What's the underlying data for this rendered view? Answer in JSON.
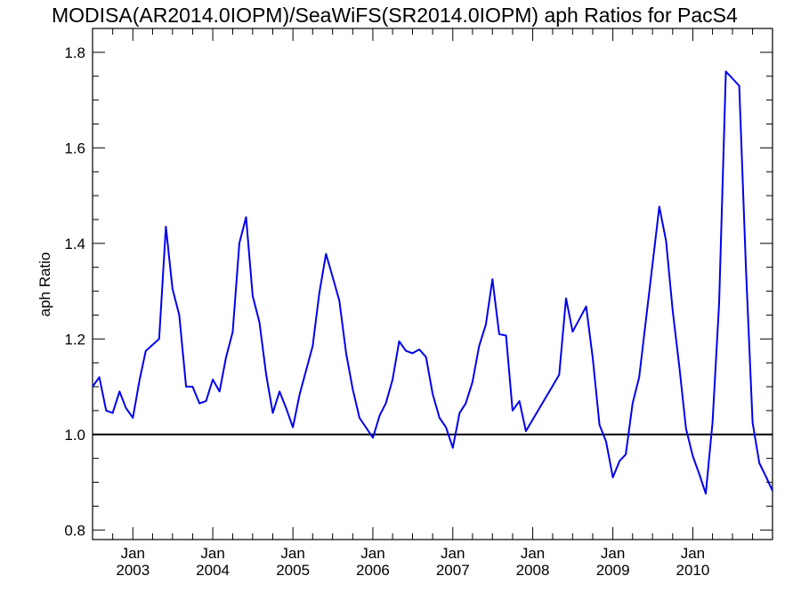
{
  "chart_data": {
    "type": "line",
    "title": "MODISA(AR2014.0IOPM)/SeaWiFS(SR2014.0IOPM)  aph Ratios for PacS4",
    "xlabel": "",
    "ylabel": "aph Ratio",
    "ylim": [
      0.78,
      1.85
    ],
    "xlim": [
      "2002-07-01",
      "2010-12-31"
    ],
    "yticks": [
      "0.8",
      "1.0",
      "1.2",
      "1.4",
      "1.6",
      "1.8"
    ],
    "xtick_month_labels": [
      "Jan",
      "Jan",
      "Jan",
      "Jan",
      "Jan",
      "Jan",
      "Jan",
      "Jan"
    ],
    "xtick_year_labels": [
      "2003",
      "2004",
      "2005",
      "2006",
      "2007",
      "2008",
      "2009",
      "2010"
    ],
    "reference_line": {
      "y": 1.0,
      "color": "#000000"
    },
    "grid": false,
    "series": [
      {
        "color": "#0000ee",
        "points": [
          [
            "2002-07-01",
            1.1
          ],
          [
            "2002-08-01",
            1.12
          ],
          [
            "2002-09-01",
            1.05
          ],
          [
            "2002-10-01",
            1.045
          ],
          [
            "2002-11-01",
            1.09
          ],
          [
            "2002-12-01",
            1.055
          ],
          [
            "2003-01-01",
            1.035
          ],
          [
            "2003-02-01",
            1.115
          ],
          [
            "2003-03-01",
            1.175
          ],
          [
            "2003-05-01",
            1.2
          ],
          [
            "2003-06-01",
            1.435
          ],
          [
            "2003-07-01",
            1.305
          ],
          [
            "2003-08-01",
            1.25
          ],
          [
            "2003-09-01",
            1.1
          ],
          [
            "2003-10-01",
            1.1
          ],
          [
            "2003-11-01",
            1.065
          ],
          [
            "2003-12-01",
            1.07
          ],
          [
            "2004-01-01",
            1.115
          ],
          [
            "2004-02-01",
            1.09
          ],
          [
            "2004-03-01",
            1.16
          ],
          [
            "2004-04-01",
            1.215
          ],
          [
            "2004-05-01",
            1.4
          ],
          [
            "2004-06-01",
            1.455
          ],
          [
            "2004-07-01",
            1.29
          ],
          [
            "2004-08-01",
            1.235
          ],
          [
            "2004-09-01",
            1.125
          ],
          [
            "2004-10-01",
            1.045
          ],
          [
            "2004-11-01",
            1.09
          ],
          [
            "2004-12-01",
            1.055
          ],
          [
            "2005-01-01",
            1.015
          ],
          [
            "2005-02-01",
            1.085
          ],
          [
            "2005-04-01",
            1.185
          ],
          [
            "2005-05-01",
            1.295
          ],
          [
            "2005-06-01",
            1.378
          ],
          [
            "2005-07-01",
            1.33
          ],
          [
            "2005-08-01",
            1.28
          ],
          [
            "2005-09-01",
            1.17
          ],
          [
            "2005-10-01",
            1.095
          ],
          [
            "2005-11-01",
            1.035
          ],
          [
            "2006-01-01",
            0.993
          ],
          [
            "2006-02-01",
            1.04
          ],
          [
            "2006-03-01",
            1.065
          ],
          [
            "2006-04-01",
            1.115
          ],
          [
            "2006-05-01",
            1.195
          ],
          [
            "2006-06-01",
            1.175
          ],
          [
            "2006-07-01",
            1.17
          ],
          [
            "2006-08-01",
            1.178
          ],
          [
            "2006-09-01",
            1.162
          ],
          [
            "2006-10-01",
            1.085
          ],
          [
            "2006-11-01",
            1.035
          ],
          [
            "2006-12-01",
            1.015
          ],
          [
            "2007-01-01",
            0.972
          ],
          [
            "2007-02-01",
            1.045
          ],
          [
            "2007-03-01",
            1.065
          ],
          [
            "2007-04-01",
            1.11
          ],
          [
            "2007-05-01",
            1.185
          ],
          [
            "2007-06-01",
            1.23
          ],
          [
            "2007-07-01",
            1.325
          ],
          [
            "2007-08-01",
            1.21
          ],
          [
            "2007-09-01",
            1.207
          ],
          [
            "2007-10-01",
            1.05
          ],
          [
            "2007-11-01",
            1.07
          ],
          [
            "2007-12-01",
            1.007
          ],
          [
            "2008-05-01",
            1.125
          ],
          [
            "2008-06-01",
            1.285
          ],
          [
            "2008-07-01",
            1.215
          ],
          [
            "2008-09-01",
            1.268
          ],
          [
            "2008-10-01",
            1.16
          ],
          [
            "2008-11-01",
            1.02
          ],
          [
            "2008-12-01",
            0.985
          ],
          [
            "2009-01-01",
            0.91
          ],
          [
            "2009-02-01",
            0.945
          ],
          [
            "2009-03-01",
            0.958
          ],
          [
            "2009-04-01",
            1.065
          ],
          [
            "2009-05-01",
            1.12
          ],
          [
            "2009-08-01",
            1.477
          ],
          [
            "2009-09-01",
            1.405
          ],
          [
            "2009-10-01",
            1.26
          ],
          [
            "2009-11-01",
            1.14
          ],
          [
            "2009-12-01",
            1.012
          ],
          [
            "2010-01-01",
            0.955
          ],
          [
            "2010-02-01",
            0.915
          ],
          [
            "2010-03-01",
            0.876
          ],
          [
            "2010-04-01",
            1.025
          ],
          [
            "2010-05-01",
            1.275
          ],
          [
            "2010-06-01",
            1.76
          ],
          [
            "2010-08-01",
            1.73
          ],
          [
            "2010-09-01",
            1.345
          ],
          [
            "2010-10-01",
            1.025
          ],
          [
            "2010-11-01",
            0.94
          ],
          [
            "2010-12-01",
            0.912
          ],
          [
            "2010-12-31",
            0.882
          ]
        ]
      }
    ]
  }
}
